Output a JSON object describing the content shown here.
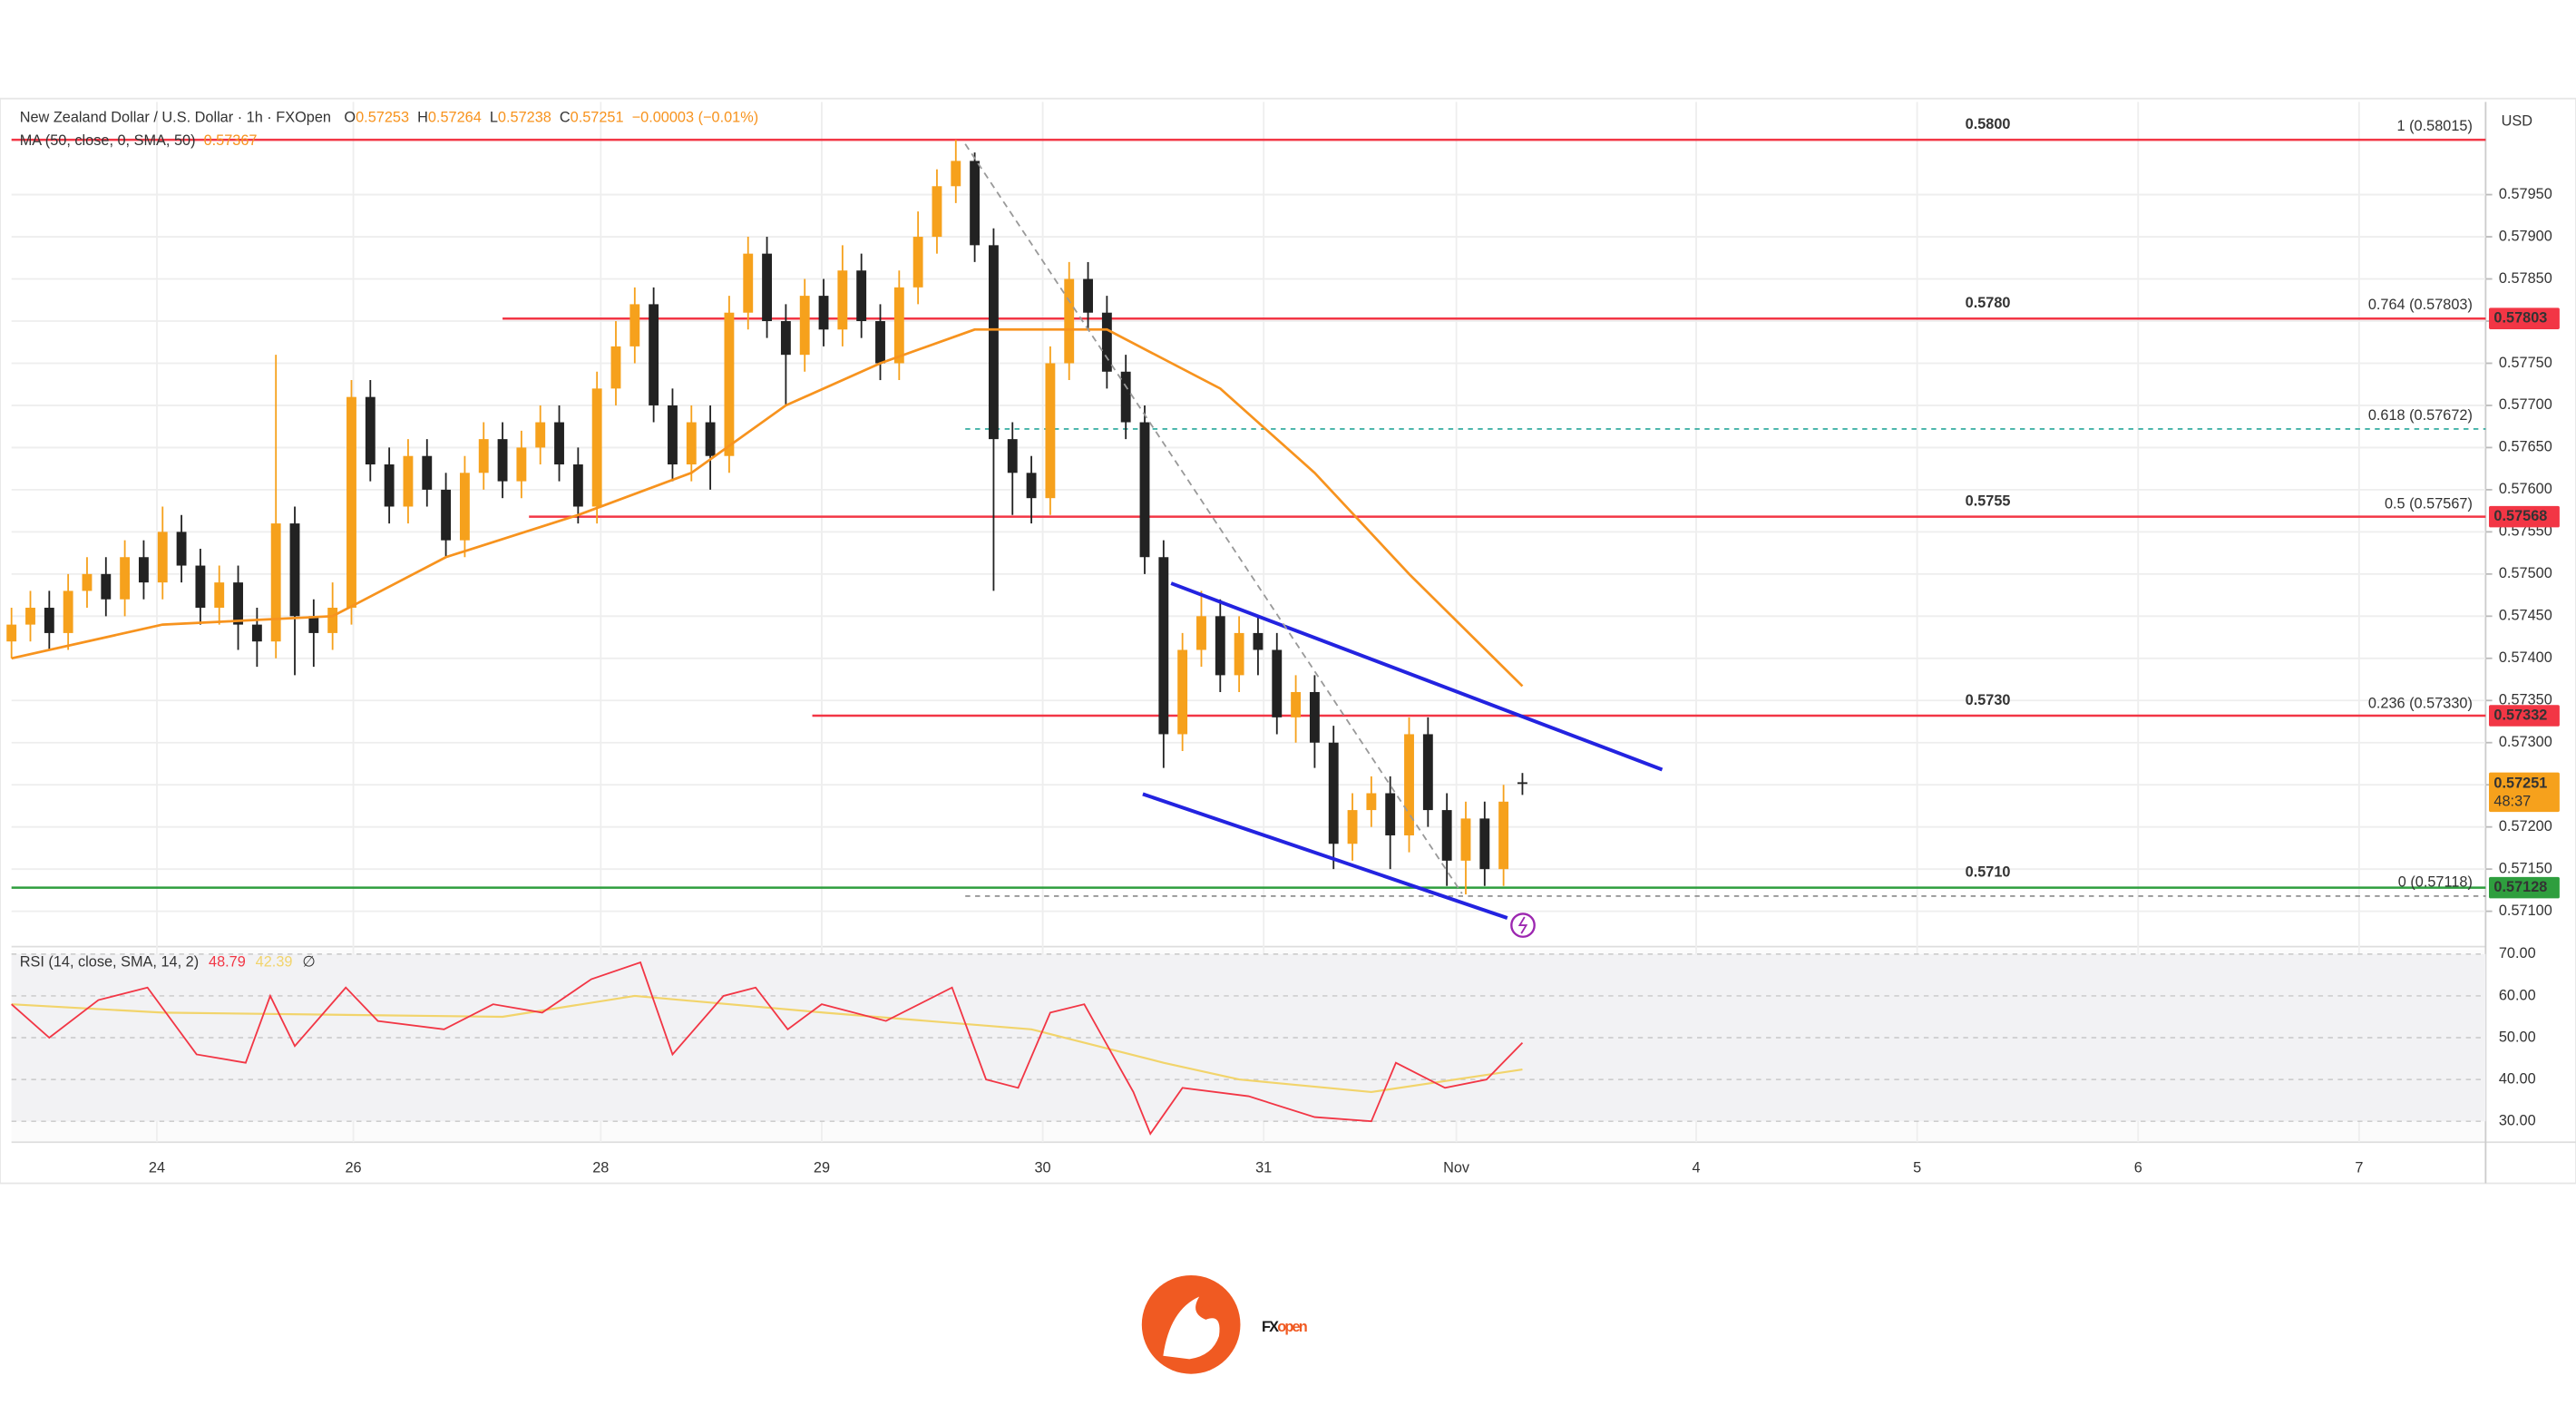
{
  "header": {
    "symbol": "New Zealand Dollar / U.S. Dollar · 1h · FXOpen",
    "keys": [
      "O",
      "H",
      "L",
      "C"
    ],
    "change": "−0.00003 (−0.01%)",
    "ma_legend": "MA (50, close, 0, SMA, 50)"
  },
  "logo": {
    "parts": [
      "FX",
      "open"
    ]
  },
  "chart_data": [
    {
      "type": "candlestick",
      "currency": "USD",
      "up_color": "#f6a11c",
      "down_color": "#222222",
      "open": [
        0.5742,
        0.5744,
        0.5746,
        0.5743,
        0.5748,
        0.575,
        0.5747,
        0.5752,
        0.5749,
        0.5755,
        0.5751,
        0.5746,
        0.5749,
        0.5744,
        0.5742,
        0.5756,
        0.5745,
        0.5743,
        0.5746,
        0.5771,
        0.5763,
        0.5758,
        0.5764,
        0.576,
        0.5754,
        0.5762,
        0.5766,
        0.5761,
        0.5765,
        0.5768,
        0.5763,
        0.5758,
        0.5772,
        0.5777,
        0.5782,
        0.577,
        0.5763,
        0.5768,
        0.5764,
        0.5781,
        0.5788,
        0.578,
        0.5776,
        0.5783,
        0.5779,
        0.5786,
        0.578,
        0.5775,
        0.5784,
        0.579,
        0.5796,
        0.5799,
        0.5789,
        0.5766,
        0.5762,
        0.5759,
        0.5775,
        0.5785,
        0.5781,
        0.5774,
        0.5768,
        0.5752,
        0.5731,
        0.5741,
        0.5745,
        0.5738,
        0.5743,
        0.5741,
        0.5733,
        0.5736,
        0.573,
        0.5718,
        0.5722,
        0.5724,
        0.5719,
        0.5731,
        0.5722,
        0.5716,
        0.5721,
        0.5715,
        0.57253
      ],
      "high": [
        0.5746,
        0.5748,
        0.5748,
        0.575,
        0.5752,
        0.5752,
        0.5754,
        0.5754,
        0.5758,
        0.5757,
        0.5753,
        0.5751,
        0.5751,
        0.5746,
        0.5776,
        0.5758,
        0.5747,
        0.5749,
        0.5773,
        0.5773,
        0.5765,
        0.5766,
        0.5766,
        0.5762,
        0.5764,
        0.5768,
        0.5768,
        0.5767,
        0.577,
        0.577,
        0.5765,
        0.5774,
        0.578,
        0.5784,
        0.5784,
        0.5772,
        0.577,
        0.577,
        0.5783,
        0.579,
        0.579,
        0.5782,
        0.5785,
        0.5785,
        0.5789,
        0.5788,
        0.5782,
        0.5786,
        0.5793,
        0.5798,
        0.58015,
        0.58,
        0.5791,
        0.5768,
        0.5764,
        0.5777,
        0.5787,
        0.5787,
        0.5783,
        0.5776,
        0.577,
        0.5754,
        0.5743,
        0.5748,
        0.5747,
        0.5745,
        0.5745,
        0.5743,
        0.5738,
        0.5738,
        0.5732,
        0.5724,
        0.5726,
        0.5726,
        0.5733,
        0.5733,
        0.5724,
        0.5723,
        0.5723,
        0.5725,
        0.57264
      ],
      "low": [
        0.574,
        0.5742,
        0.5741,
        0.5741,
        0.5746,
        0.5745,
        0.5745,
        0.5747,
        0.5747,
        0.5749,
        0.5744,
        0.5744,
        0.5741,
        0.5739,
        0.574,
        0.5738,
        0.5739,
        0.5741,
        0.5744,
        0.5761,
        0.5756,
        0.5756,
        0.5758,
        0.5752,
        0.5752,
        0.576,
        0.5759,
        0.5759,
        0.5763,
        0.5761,
        0.5756,
        0.5756,
        0.577,
        0.5775,
        0.5768,
        0.5761,
        0.5761,
        0.576,
        0.5762,
        0.5779,
        0.5778,
        0.577,
        0.5774,
        0.5777,
        0.5777,
        0.5778,
        0.5773,
        0.5773,
        0.5782,
        0.5788,
        0.5794,
        0.5787,
        0.5748,
        0.5757,
        0.5756,
        0.5757,
        0.5773,
        0.5779,
        0.5772,
        0.5766,
        0.575,
        0.5727,
        0.5729,
        0.5739,
        0.5736,
        0.5736,
        0.5738,
        0.5731,
        0.573,
        0.5727,
        0.5715,
        0.5716,
        0.572,
        0.5715,
        0.5717,
        0.572,
        0.5713,
        0.5712,
        0.5713,
        0.5713,
        0.57238
      ],
      "close": [
        0.5744,
        0.5746,
        0.5743,
        0.5748,
        0.575,
        0.5747,
        0.5752,
        0.5749,
        0.5755,
        0.5751,
        0.5746,
        0.5749,
        0.5744,
        0.5742,
        0.5756,
        0.5745,
        0.5743,
        0.5746,
        0.5771,
        0.5763,
        0.5758,
        0.5764,
        0.576,
        0.5754,
        0.5762,
        0.5766,
        0.5761,
        0.5765,
        0.5768,
        0.5763,
        0.5758,
        0.5772,
        0.5777,
        0.5782,
        0.577,
        0.5763,
        0.5768,
        0.5764,
        0.5781,
        0.5788,
        0.578,
        0.5776,
        0.5783,
        0.5779,
        0.5786,
        0.578,
        0.5775,
        0.5784,
        0.579,
        0.5796,
        0.5799,
        0.5789,
        0.5766,
        0.5762,
        0.5759,
        0.5775,
        0.5785,
        0.5781,
        0.5774,
        0.5768,
        0.5752,
        0.5731,
        0.5741,
        0.5745,
        0.5738,
        0.5743,
        0.5741,
        0.5733,
        0.5736,
        0.573,
        0.5718,
        0.5722,
        0.5724,
        0.5719,
        0.5731,
        0.5722,
        0.5716,
        0.5721,
        0.5715,
        0.5723,
        0.57251
      ],
      "countdown": "48:37",
      "ma": {
        "color": "#f7931e",
        "x": [
          0,
          8,
          17,
          23,
          30,
          36,
          41,
          46,
          51,
          58,
          64,
          69,
          74,
          80
        ],
        "values": [
          0.574,
          0.5744,
          0.5745,
          0.5752,
          0.5757,
          0.5762,
          0.577,
          0.5775,
          0.5779,
          0.5779,
          0.5772,
          0.5762,
          0.575,
          0.57367
        ]
      },
      "xlim": [
        0,
        131
      ],
      "ylim": [
        0.5706,
        0.5806
      ],
      "xticks": [
        {
          "value": 7.7,
          "label": "24"
        },
        {
          "value": 18.1,
          "label": "26"
        },
        {
          "value": 31.2,
          "label": "28"
        },
        {
          "value": 42.9,
          "label": "29"
        },
        {
          "value": 54.6,
          "label": "30"
        },
        {
          "value": 66.3,
          "label": "31"
        },
        {
          "value": 76.5,
          "label": "Nov"
        },
        {
          "value": 89.2,
          "label": "4"
        },
        {
          "value": 100.9,
          "label": "5"
        },
        {
          "value": 112.6,
          "label": "6"
        },
        {
          "value": 124.3,
          "label": "7"
        }
      ],
      "yticks": [
        {
          "value": 0.571,
          "label": "0.57100"
        },
        {
          "value": 0.5715,
          "label": "0.57150"
        },
        {
          "value": 0.572,
          "label": "0.57200"
        },
        {
          "value": 0.5725,
          "label": "0.57250"
        },
        {
          "value": 0.573,
          "label": "0.57300"
        },
        {
          "value": 0.5735,
          "label": "0.57350"
        },
        {
          "value": 0.574,
          "label": "0.57400"
        },
        {
          "value": 0.5745,
          "label": "0.57450"
        },
        {
          "value": 0.575,
          "label": "0.57500"
        },
        {
          "value": 0.5755,
          "label": "0.57550"
        },
        {
          "value": 0.576,
          "label": "0.57600"
        },
        {
          "value": 0.5765,
          "label": "0.57650"
        },
        {
          "value": 0.577,
          "label": "0.57700"
        },
        {
          "value": 0.5775,
          "label": "0.57750"
        },
        {
          "value": 0.578,
          "label": "0.57800"
        },
        {
          "value": 0.5785,
          "label": "0.57850"
        },
        {
          "value": 0.579,
          "label": "0.57900"
        },
        {
          "value": 0.5795,
          "label": "0.57950"
        }
      ],
      "grid": true,
      "levels": [
        {
          "name": "0.5800",
          "value": 0.58015,
          "from": 0,
          "color": "#f23645",
          "badge": false
        },
        {
          "name": "0.5780",
          "value": 0.57803,
          "from": 26,
          "color": "#f23645",
          "badge": true
        },
        {
          "name": "0.5755",
          "value": 0.57568,
          "from": 27.4,
          "color": "#f23645",
          "badge": true
        },
        {
          "name": "0.5730",
          "value": 0.57332,
          "from": 42.4,
          "color": "#f23645",
          "badge": true
        },
        {
          "name": "0.5710",
          "value": 0.57128,
          "from": 0,
          "color": "#2e9e3e",
          "badge": true
        }
      ],
      "fibs": [
        {
          "label": "1 (0.58015)",
          "value": 0.58015,
          "color": "#5b9bd5",
          "dashed": false
        },
        {
          "label": "0.764 (0.57803)",
          "value": 0.57803,
          "color": "#e03030",
          "dashed": false
        },
        {
          "label": "0.618 (0.57672)",
          "value": 0.57672,
          "color": "#26a69a",
          "dashed": true
        },
        {
          "label": "0.5 (0.57567)",
          "value": 0.57567,
          "color": "#e03030",
          "dashed": false
        },
        {
          "label": "0.236 (0.57330)",
          "value": 0.5733,
          "color": "#e03030",
          "dashed": false
        },
        {
          "label": "0 (0.57118)",
          "value": 0.57118,
          "color": "#888888",
          "dashed": true
        }
      ],
      "fib_start": 50.5,
      "drawings": [
        {
          "color": "#2323e0",
          "dashed": false,
          "points": [
            [
              61.4,
              0.57489
            ],
            [
              87.4,
              0.57268
            ]
          ]
        },
        {
          "color": "#2323e0",
          "dashed": false,
          "points": [
            [
              59.9,
              0.57239
            ],
            [
              79.2,
              0.57092
            ]
          ]
        },
        {
          "color": "#999999",
          "dashed": true,
          "points": [
            [
              50.5,
              0.5801
            ],
            [
              76.8,
              0.57121
            ]
          ]
        }
      ]
    },
    {
      "type": "line",
      "title": "RSI (14, close, SMA, 14, 2)",
      "legend_symbol": "∅",
      "xlim": [
        0,
        131
      ],
      "ylim": [
        25,
        71
      ],
      "yticks": [
        {
          "value": 30,
          "label": "30.00"
        },
        {
          "value": 40,
          "label": "40.00"
        },
        {
          "value": 50,
          "label": "50.00"
        },
        {
          "value": 60,
          "label": "60.00"
        },
        {
          "value": 70,
          "label": "70.00"
        }
      ],
      "series": [
        {
          "color": "#f23645",
          "x": [
            0,
            2,
            4.6,
            7.2,
            9.8,
            12.4,
            13.7,
            15,
            17.7,
            19.4,
            22.9,
            25.5,
            28.1,
            30.7,
            33.3,
            35,
            37.7,
            39.4,
            41.1,
            42.9,
            46.3,
            49.8,
            51.6,
            53.3,
            55,
            56.8,
            59.4,
            60.3,
            62,
            65.5,
            69,
            72,
            73.3,
            75.9,
            78.1,
            80
          ],
          "values": [
            58,
            50,
            59,
            62,
            46,
            44,
            60,
            48,
            62,
            54,
            52,
            58,
            56,
            64,
            68,
            46,
            60,
            62,
            52,
            58,
            54,
            62,
            40,
            38,
            56,
            58,
            37,
            27,
            38,
            36,
            31,
            30,
            44,
            38,
            40,
            48.79
          ]
        },
        {
          "color": "#f2d46b",
          "x": [
            0,
            8,
            26,
            33,
            43,
            54,
            61,
            65,
            72,
            80
          ],
          "values": [
            58,
            56,
            55,
            60,
            56,
            52,
            44,
            40,
            37,
            42.39
          ]
        }
      ]
    }
  ]
}
